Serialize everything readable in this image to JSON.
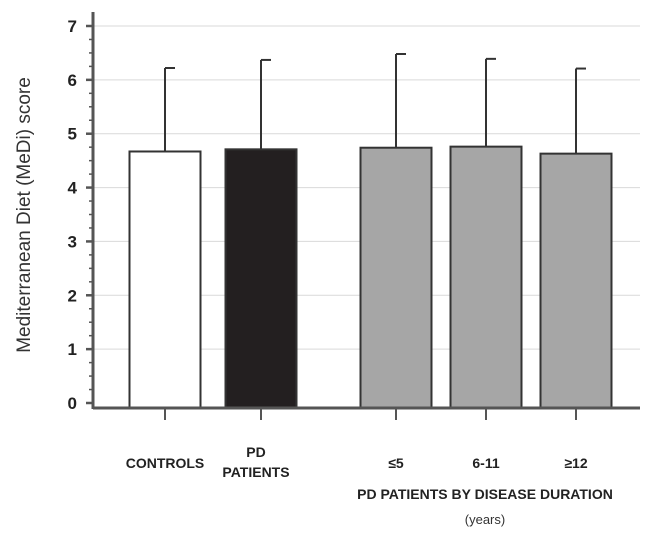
{
  "chart_data": {
    "type": "bar",
    "title": "",
    "ylabel": "Mediterranean Diet (MeDi) score",
    "xlabel": "",
    "ylim": [
      0,
      7
    ],
    "yticks": [
      0,
      1,
      2,
      3,
      4,
      5,
      6,
      7
    ],
    "grid": true,
    "categories": [
      {
        "label": [
          "CONTROLS"
        ],
        "value": 4.67,
        "error": 1.55,
        "color": "#ffffff"
      },
      {
        "label": [
          "PD",
          "PATIENTS"
        ],
        "value": 4.71,
        "error": 1.66,
        "color": "#231f20"
      },
      {
        "label": [
          "≤5"
        ],
        "value": 4.74,
        "error": 1.74,
        "color": "#a6a6a6"
      },
      {
        "label": [
          "6-11"
        ],
        "value": 4.76,
        "error": 1.63,
        "color": "#a6a6a6"
      },
      {
        "label": [
          "≥12"
        ],
        "value": 4.63,
        "error": 1.58,
        "color": "#a6a6a6"
      }
    ],
    "group_label": {
      "text": "PD PATIENTS BY DISEASE DURATION",
      "subtext": "(years)"
    }
  }
}
